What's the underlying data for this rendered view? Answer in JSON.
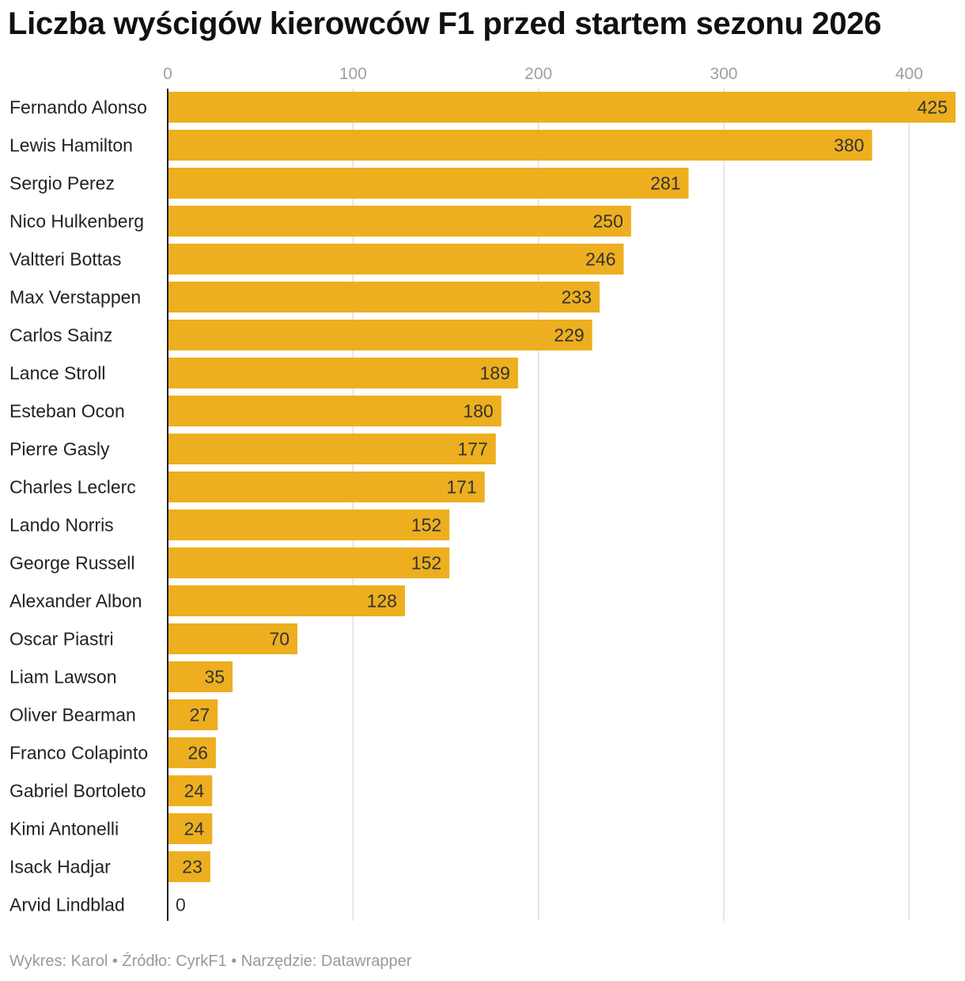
{
  "chart_data": {
    "type": "bar",
    "orientation": "horizontal",
    "title": "Liczba wyścigów kierowców F1 przed startem sezonu 2026",
    "xlabel": "",
    "ylabel": "",
    "xlim": [
      0,
      425
    ],
    "ticks": [
      0,
      100,
      200,
      300,
      400
    ],
    "grid": true,
    "bar_color": "#EDAF1F",
    "categories": [
      "Fernando Alonso",
      "Lewis Hamilton",
      "Sergio Perez",
      "Nico Hulkenberg",
      "Valtteri Bottas",
      "Max Verstappen",
      "Carlos Sainz",
      "Lance Stroll",
      "Esteban Ocon",
      "Pierre Gasly",
      "Charles Leclerc",
      "Lando Norris",
      "George Russell",
      "Alexander Albon",
      "Oscar Piastri",
      "Liam Lawson",
      "Oliver Bearman",
      "Franco Colapinto",
      "Gabriel Bortoleto",
      "Kimi Antonelli",
      "Isack Hadjar",
      "Arvid Lindblad"
    ],
    "values": [
      425,
      380,
      281,
      250,
      246,
      233,
      229,
      189,
      180,
      177,
      171,
      152,
      152,
      128,
      70,
      35,
      27,
      26,
      24,
      24,
      23,
      0
    ]
  },
  "footer": "Wykres: Karol • Źródło: CyrkF1 • Narzędzie: Datawrapper"
}
